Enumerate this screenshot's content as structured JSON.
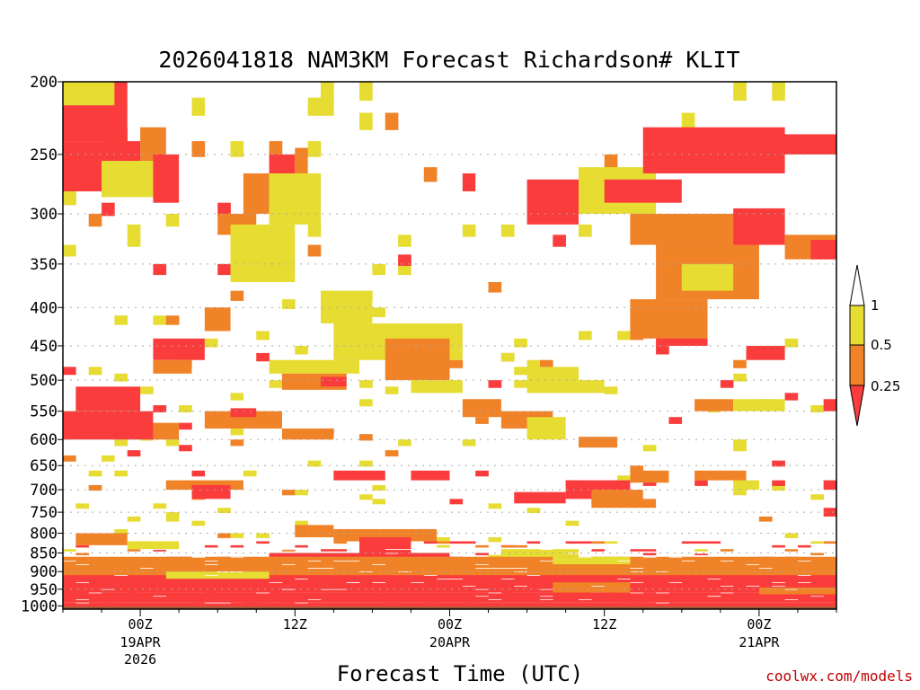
{
  "chart_data": {
    "type": "heatmap",
    "title": "2026041818 NAM3KM Forecast Richardson# KLIT",
    "xlabel": "Forecast Time (UTC)",
    "ylabel": "",
    "y_ticks": [
      "200",
      "250",
      "300",
      "350",
      "400",
      "450",
      "500",
      "550",
      "600",
      "650",
      "700",
      "750",
      "800",
      "850",
      "900",
      "950",
      "1000"
    ],
    "x_ticks": [
      {
        "label": "00Z",
        "date": "19APR",
        "year": "2026",
        "hour": 6
      },
      {
        "label": "12Z",
        "date": "",
        "year": "",
        "hour": 18
      },
      {
        "label": "00Z",
        "date": "20APR",
        "year": "",
        "hour": 30
      },
      {
        "label": "12Z",
        "date": "",
        "year": "",
        "hour": 42
      },
      {
        "label": "00Z",
        "date": "21APR",
        "year": "",
        "hour": 54
      }
    ],
    "x_range_hours": [
      0,
      60
    ],
    "y_range_hpa": [
      200,
      1010
    ],
    "legend": {
      "levels": [
        "1",
        "0.5",
        "0.25"
      ],
      "colors": {
        "above_1": "#ffffff",
        "0.5_to_1": "#e6dc32",
        "0.25_to_0.5": "#f08228",
        "below_0.25": "#fa3c3c"
      }
    },
    "class_colors": {
      "1": "#e6dc32",
      "2": "#f08228",
      "3": "#fa3c3c"
    },
    "ground_color": "#a0522d",
    "cells": [
      {
        "p": [
          200,
          240
        ],
        "h": [
          0,
          5
        ],
        "c": 3
      },
      {
        "p": [
          240,
          280
        ],
        "h": [
          0,
          6
        ],
        "c": 3
      },
      {
        "p": [
          200,
          215
        ],
        "h": [
          0,
          4
        ],
        "c": 1
      },
      {
        "p": [
          230,
          255
        ],
        "h": [
          6,
          8
        ],
        "c": 2
      },
      {
        "p": [
          255,
          285
        ],
        "h": [
          3,
          8
        ],
        "c": 1
      },
      {
        "p": [
          250,
          290
        ],
        "h": [
          7,
          9
        ],
        "c": 3
      },
      {
        "p": [
          250,
          265
        ],
        "h": [
          16,
          18
        ],
        "c": 3
      },
      {
        "p": [
          245,
          270
        ],
        "h": [
          18,
          19
        ],
        "c": 2
      },
      {
        "p": [
          265,
          300
        ],
        "h": [
          14,
          16
        ],
        "c": 2
      },
      {
        "p": [
          265,
          310
        ],
        "h": [
          16,
          20
        ],
        "c": 1
      },
      {
        "p": [
          300,
          320
        ],
        "h": [
          12,
          15
        ],
        "c": 2
      },
      {
        "p": [
          310,
          370
        ],
        "h": [
          13,
          18
        ],
        "c": 1
      },
      {
        "p": [
          265,
          280
        ],
        "h": [
          31,
          32
        ],
        "c": 3
      },
      {
        "p": [
          270,
          310
        ],
        "h": [
          36,
          40
        ],
        "c": 3
      },
      {
        "p": [
          260,
          300
        ],
        "h": [
          40,
          46
        ],
        "c": 1
      },
      {
        "p": [
          270,
          290
        ],
        "h": [
          42,
          48
        ],
        "c": 3
      },
      {
        "p": [
          230,
          265
        ],
        "h": [
          45,
          56
        ],
        "c": 3
      },
      {
        "p": [
          235,
          250
        ],
        "h": [
          54,
          60
        ],
        "c": 3
      },
      {
        "p": [
          300,
          330
        ],
        "h": [
          44,
          54
        ],
        "c": 2
      },
      {
        "p": [
          330,
          390
        ],
        "h": [
          46,
          54
        ],
        "c": 2
      },
      {
        "p": [
          350,
          380
        ],
        "h": [
          48,
          52
        ],
        "c": 1
      },
      {
        "p": [
          295,
          330
        ],
        "h": [
          52,
          56
        ],
        "c": 3
      },
      {
        "p": [
          320,
          345
        ],
        "h": [
          56,
          60
        ],
        "c": 2
      },
      {
        "p": [
          325,
          345
        ],
        "h": [
          58,
          60
        ],
        "c": 3
      },
      {
        "p": [
          420,
          450
        ],
        "h": [
          46,
          50
        ],
        "c": 3
      },
      {
        "p": [
          450,
          470
        ],
        "h": [
          53,
          56
        ],
        "c": 3
      },
      {
        "p": [
          390,
          440
        ],
        "h": [
          44,
          50
        ],
        "c": 2
      },
      {
        "p": [
          380,
          420
        ],
        "h": [
          20,
          24
        ],
        "c": 1
      },
      {
        "p": [
          420,
          470
        ],
        "h": [
          21,
          31
        ],
        "c": 1
      },
      {
        "p": [
          440,
          500
        ],
        "h": [
          25,
          30
        ],
        "c": 2
      },
      {
        "p": [
          470,
          490
        ],
        "h": [
          16,
          23
        ],
        "c": 1
      },
      {
        "p": [
          490,
          515
        ],
        "h": [
          17,
          22
        ],
        "c": 2
      },
      {
        "p": [
          495,
          510
        ],
        "h": [
          20,
          22
        ],
        "c": 3
      },
      {
        "p": [
          500,
          520
        ],
        "h": [
          27,
          31
        ],
        "c": 1
      },
      {
        "p": [
          480,
          510
        ],
        "h": [
          36,
          40
        ],
        "c": 1
      },
      {
        "p": [
          510,
          550
        ],
        "h": [
          1,
          6
        ],
        "c": 3
      },
      {
        "p": [
          550,
          600
        ],
        "h": [
          0,
          7
        ],
        "c": 3
      },
      {
        "p": [
          570,
          600
        ],
        "h": [
          7,
          9
        ],
        "c": 2
      },
      {
        "p": [
          440,
          470
        ],
        "h": [
          7,
          11
        ],
        "c": 3
      },
      {
        "p": [
          470,
          490
        ],
        "h": [
          7,
          10
        ],
        "c": 2
      },
      {
        "p": [
          400,
          430
        ],
        "h": [
          11,
          13
        ],
        "c": 2
      },
      {
        "p": [
          550,
          580
        ],
        "h": [
          11,
          17
        ],
        "c": 2
      },
      {
        "p": [
          545,
          560
        ],
        "h": [
          13,
          15
        ],
        "c": 3
      },
      {
        "p": [
          580,
          600
        ],
        "h": [
          17,
          21
        ],
        "c": 2
      },
      {
        "p": [
          550,
          580
        ],
        "h": [
          34,
          38
        ],
        "c": 2
      },
      {
        "p": [
          560,
          600
        ],
        "h": [
          36,
          39
        ],
        "c": 1
      },
      {
        "p": [
          595,
          615
        ],
        "h": [
          40,
          43
        ],
        "c": 2
      },
      {
        "p": [
          530,
          560
        ],
        "h": [
          31,
          34
        ],
        "c": 2
      },
      {
        "p": [
          530,
          550
        ],
        "h": [
          49,
          52
        ],
        "c": 2
      },
      {
        "p": [
          530,
          550
        ],
        "h": [
          52,
          56
        ],
        "c": 1
      },
      {
        "p": [
          530,
          550
        ],
        "h": [
          59,
          60
        ],
        "c": 3
      },
      {
        "p": [
          500,
          520
        ],
        "h": [
          36,
          42
        ],
        "c": 1
      },
      {
        "p": [
          660,
          680
        ],
        "h": [
          21,
          25
        ],
        "c": 3
      },
      {
        "p": [
          660,
          680
        ],
        "h": [
          27,
          30
        ],
        "c": 3
      },
      {
        "p": [
          680,
          700
        ],
        "h": [
          8,
          14
        ],
        "c": 2
      },
      {
        "p": [
          690,
          720
        ],
        "h": [
          10,
          13
        ],
        "c": 3
      },
      {
        "p": [
          705,
          730
        ],
        "h": [
          35,
          39
        ],
        "c": 3
      },
      {
        "p": [
          680,
          720
        ],
        "h": [
          39,
          44
        ],
        "c": 3
      },
      {
        "p": [
          700,
          730
        ],
        "h": [
          41,
          45
        ],
        "c": 2
      },
      {
        "p": [
          660,
          685
        ],
        "h": [
          44,
          47
        ],
        "c": 2
      },
      {
        "p": [
          660,
          680
        ],
        "h": [
          49,
          53
        ],
        "c": 2
      },
      {
        "p": [
          680,
          700
        ],
        "h": [
          52,
          54
        ],
        "c": 1
      },
      {
        "p": [
          680,
          700
        ],
        "h": [
          59,
          60
        ],
        "c": 3
      },
      {
        "p": [
          740,
          760
        ],
        "h": [
          59,
          60
        ],
        "c": 3
      },
      {
        "p": [
          720,
          740
        ],
        "h": [
          41,
          46
        ],
        "c": 2
      },
      {
        "p": [
          780,
          810
        ],
        "h": [
          18,
          21
        ],
        "c": 2
      },
      {
        "p": [
          790,
          820
        ],
        "h": [
          21,
          29
        ],
        "c": 2
      },
      {
        "p": [
          810,
          850
        ],
        "h": [
          23,
          27
        ],
        "c": 3
      },
      {
        "p": [
          800,
          830
        ],
        "h": [
          1,
          5
        ],
        "c": 2
      },
      {
        "p": [
          820,
          840
        ],
        "h": [
          5,
          9
        ],
        "c": 1
      },
      {
        "p": [
          850,
          890
        ],
        "h": [
          16,
          30
        ],
        "c": 3
      },
      {
        "p": [
          890,
          930
        ],
        "h": [
          17,
          29
        ],
        "c": 2
      },
      {
        "p": [
          855,
          895
        ],
        "h": [
          33,
          38
        ],
        "c": 1
      },
      {
        "p": [
          870,
          900
        ],
        "h": [
          46,
          53
        ],
        "c": 3
      },
      {
        "p": [
          890,
          910
        ],
        "h": [
          53,
          60
        ],
        "c": 2
      },
      {
        "p": [
          860,
          940
        ],
        "h": [
          0,
          60
        ],
        "c": 2
      },
      {
        "p": [
          910,
          960
        ],
        "h": [
          0,
          60
        ],
        "c": 3
      },
      {
        "p": [
          900,
          920
        ],
        "h": [
          8,
          16
        ],
        "c": 1
      },
      {
        "p": [
          930,
          960
        ],
        "h": [
          38,
          44
        ],
        "c": 2
      },
      {
        "p": [
          960,
          990
        ],
        "h": [
          0,
          60
        ],
        "c": 3
      },
      {
        "p": [
          990,
          1002
        ],
        "h": [
          0,
          60
        ],
        "c": 3
      },
      {
        "p": [
          860,
          880
        ],
        "h": [
          38,
          44
        ],
        "c": 1
      },
      {
        "p": [
          840,
          860
        ],
        "h": [
          34,
          40
        ],
        "c": 1
      },
      {
        "p": [
          945,
          965
        ],
        "h": [
          54,
          60
        ],
        "c": 2
      }
    ],
    "scatter_seed": 20260418
  },
  "credit": "coolwx.com/models"
}
